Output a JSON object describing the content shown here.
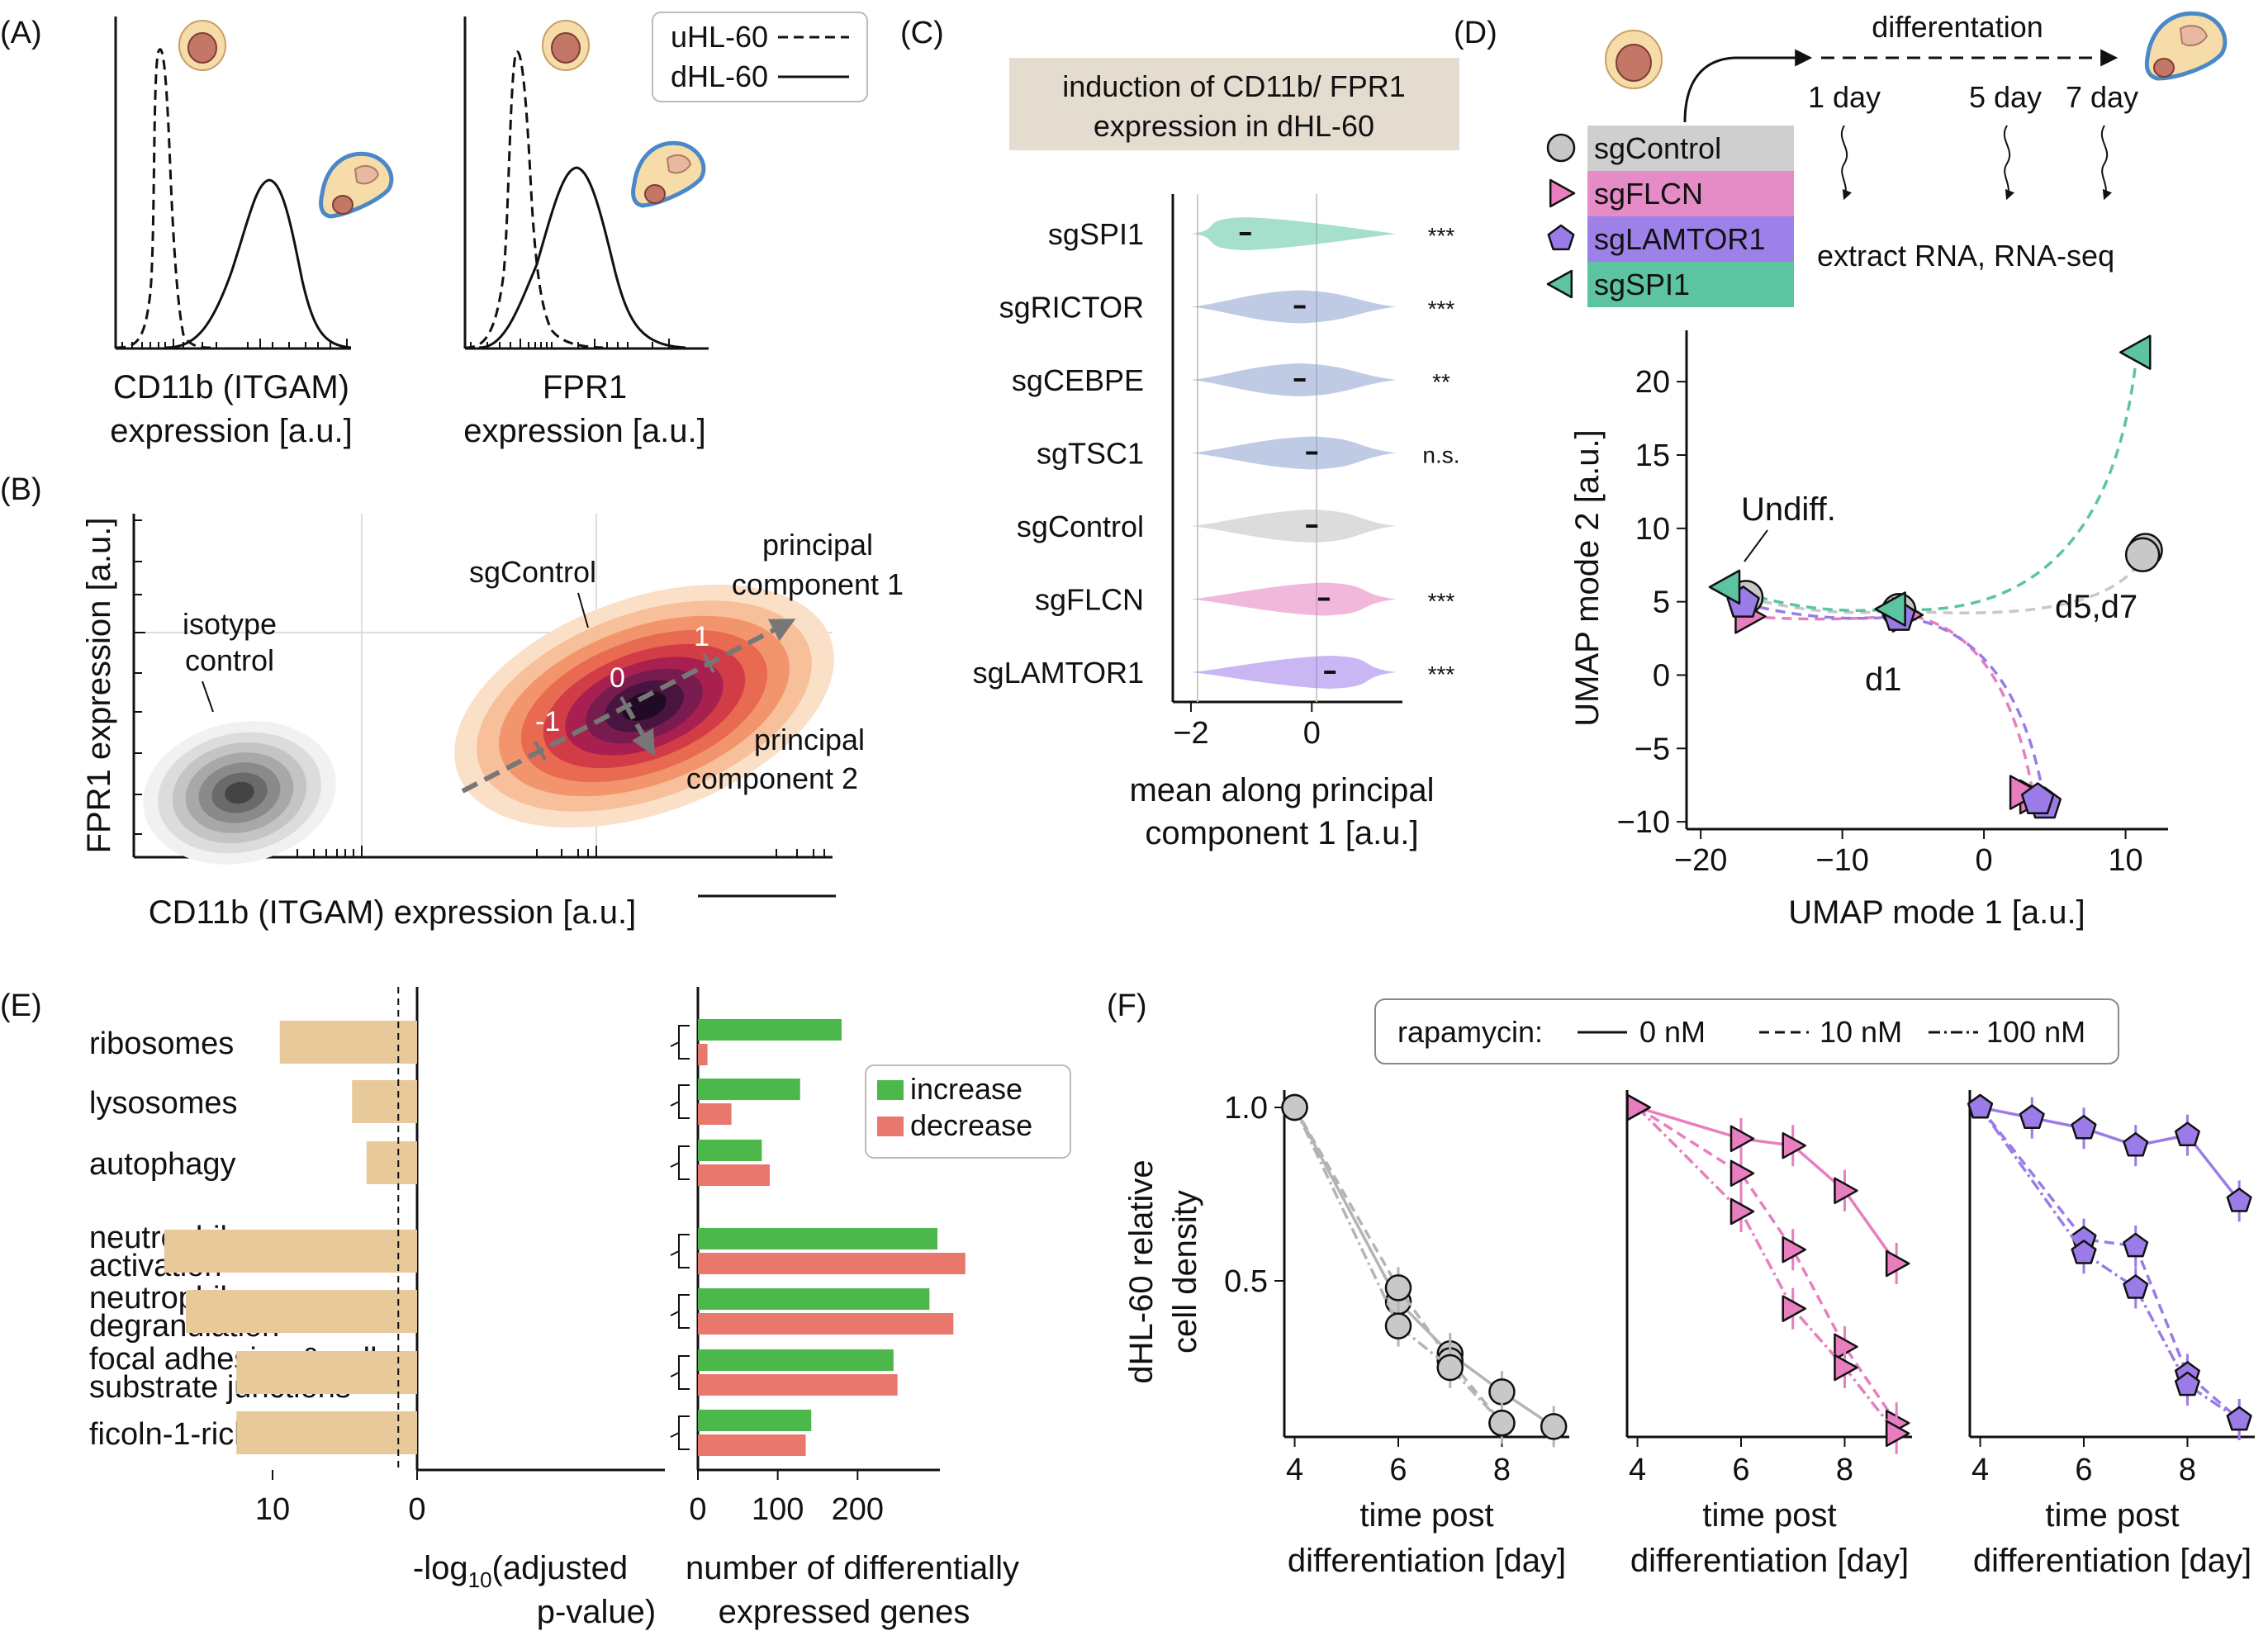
{
  "panels": {
    "A": {
      "label": "(A)",
      "legend": [
        "uHL-60",
        "dHL-60"
      ],
      "xlabel1": [
        "CD11b (ITGAM)",
        "expression [a.u.]"
      ],
      "xlabel2": [
        "FPR1",
        "expression [a.u.]"
      ]
    },
    "B": {
      "label": "(B)",
      "ylabel": "FPR1 expression [a.u.]",
      "xlabel": "CD11b (ITGAM) expression [a.u.]",
      "annotations": {
        "isotype": [
          "isotype",
          "control"
        ],
        "sgcontrol": "sgControl",
        "pc1": [
          "principal",
          "component 1"
        ],
        "pc2": [
          "principal",
          "component 2"
        ],
        "pc_ticks": [
          "-1",
          "0",
          "1"
        ]
      }
    },
    "C": {
      "label": "(C)",
      "title": [
        "induction of CD11b/ FPR1",
        "expression in dHL-60"
      ],
      "xlabel": [
        "mean along principal",
        "component 1 [a.u.]"
      ]
    },
    "D": {
      "label": "(D)",
      "timeline": {
        "title": "differentation",
        "days": [
          "1 day",
          "5 day",
          "7 day"
        ],
        "extract": "extract RNA, RNA-seq"
      },
      "legend": [
        "sgControl",
        "sgFLCN",
        "sgLAMTOR1",
        "sgSPI1"
      ],
      "xlabel": "UMAP mode 1 [a.u.]",
      "ylabel": "UMAP mode 2 [a.u.]",
      "annotations": {
        "undiff": "Undiff.",
        "d1": "d1",
        "d57": "d5,d7"
      }
    },
    "E": {
      "label": "(E)",
      "xlabel_left": [
        "-log",
        "10",
        "(adjusted",
        "p-value)"
      ],
      "xlabel_right": [
        "number of differentially",
        "expressed genes"
      ],
      "legend": [
        "increase",
        "decrease"
      ]
    },
    "F": {
      "label": "(F)",
      "legend_title": "rapamycin:",
      "legend": [
        "0 nM",
        "10 nM",
        "100 nM"
      ],
      "ylabel": [
        "dHL-60 relative",
        "cell density"
      ],
      "xlabel": [
        "time post",
        "differentiation [day]"
      ]
    }
  },
  "colors": {
    "sgControl": "#c8c8c8",
    "sgFLCN": "#e87ec0",
    "sgLAMTOR1": "#9b7be8",
    "sgSPI1": "#5cc4a0",
    "bar_tan": "#e8c99a",
    "increase": "#4cb84c",
    "decrease": "#e8786e",
    "title_box": "#e3dccf"
  },
  "chart_data": [
    {
      "panel": "C",
      "type": "violin",
      "categories": [
        "sgSPI1",
        "sgRICTOR",
        "sgCEBPE",
        "sgTSC1",
        "sgControl",
        "sgFLCN",
        "sgLAMTOR1"
      ],
      "medians": [
        -1.1,
        -0.2,
        -0.2,
        0.0,
        0.0,
        0.2,
        0.3
      ],
      "significance": [
        "***",
        "***",
        "**",
        "n.s.",
        "",
        "***",
        "***"
      ],
      "xticks": [
        "−2",
        "0"
      ],
      "xlim": [
        -2.3,
        1.5
      ]
    },
    {
      "panel": "D",
      "type": "scatter",
      "x_ticks": [
        "−20",
        "−10",
        "0",
        "10"
      ],
      "y_ticks": [
        "−10",
        "−5",
        "0",
        "5",
        "10",
        "15",
        "20"
      ],
      "xlim": [
        -21,
        13
      ],
      "ylim": [
        -10.5,
        23.5
      ],
      "series": [
        {
          "name": "sgControl",
          "points": [
            [
              -16.8,
              5.3
            ],
            [
              -6.0,
              4.4
            ],
            [
              11.4,
              8.5
            ],
            [
              11.2,
              8.2
            ]
          ]
        },
        {
          "name": "sgFLCN",
          "points": [
            [
              -16.6,
              4.0
            ],
            [
              -5.5,
              4.1
            ],
            [
              3.5,
              -8.3
            ],
            [
              2.8,
              -8.0
            ]
          ]
        },
        {
          "name": "sgLAMTOR1",
          "points": [
            [
              -17.0,
              4.9
            ],
            [
              -6.0,
              4.0
            ],
            [
              4.3,
              -8.8
            ],
            [
              3.8,
              -8.5
            ]
          ]
        },
        {
          "name": "sgSPI1",
          "points": [
            [
              -18.2,
              6.0
            ],
            [
              -6.5,
              4.5
            ],
            [
              10.8,
              22.0
            ]
          ]
        }
      ]
    },
    {
      "panel": "E",
      "type": "bar",
      "categories": [
        "ribosomes",
        "lysosomes",
        "autophagy",
        "neutrophil activation",
        "neutrophil degranulation",
        "focal adhesion & cell-substrate junctions",
        "ficoln-1-rich granules"
      ],
      "category_lines": [
        [
          "ribosomes"
        ],
        [
          "lysosomes"
        ],
        [
          "autophagy"
        ],
        [
          "neutrophil",
          "activation"
        ],
        [
          "neutrophil",
          "degranulation"
        ],
        [
          "focal adhesion & cell-",
          "substrate  junctions"
        ],
        [
          "ficoln-1-rich granules"
        ]
      ],
      "neg_log10_padj": [
        9.5,
        4.5,
        3.5,
        17.5,
        16.0,
        12.5,
        12.5
      ],
      "threshold": 1.3,
      "left_xticks": [
        "10",
        "0"
      ],
      "left_xlim": [
        18,
        0
      ],
      "increase": [
        180,
        128,
        80,
        300,
        290,
        245,
        142
      ],
      "decrease": [
        12,
        42,
        90,
        335,
        320,
        250,
        135
      ],
      "right_xticks": [
        "0",
        "100",
        "200"
      ],
      "right_xlim": [
        0,
        340
      ]
    },
    {
      "panel": "F",
      "type": "line",
      "ylim": [
        0.05,
        1.05
      ],
      "yticks": [
        "0.5",
        "1.0"
      ],
      "xticks": [
        "4",
        "6",
        "8"
      ],
      "xlim": [
        3.8,
        9.3
      ],
      "subplots": [
        {
          "group": "sgControl",
          "series": [
            {
              "name": "0 nM",
              "x": [
                4,
                6,
                7,
                8,
                9
              ],
              "y": [
                1.0,
                0.44,
                0.29,
                0.18,
                0.08
              ]
            },
            {
              "name": "10 nM",
              "x": [
                4,
                6,
                7,
                8
              ],
              "y": [
                1.0,
                0.48,
                0.27,
                0.09
              ]
            },
            {
              "name": "100 nM",
              "x": [
                4,
                6,
                7,
                8
              ],
              "y": [
                1.0,
                0.37,
                0.25,
                0.09
              ]
            }
          ]
        },
        {
          "group": "sgFLCN",
          "series": [
            {
              "name": "0 nM",
              "x": [
                4,
                6,
                7,
                8,
                9
              ],
              "y": [
                1.0,
                0.91,
                0.89,
                0.76,
                0.55
              ]
            },
            {
              "name": "10 nM",
              "x": [
                4,
                6,
                7,
                8,
                9
              ],
              "y": [
                1.0,
                0.81,
                0.59,
                0.31,
                0.09
              ]
            },
            {
              "name": "100 nM",
              "x": [
                4,
                6,
                7,
                8,
                9
              ],
              "y": [
                1.0,
                0.7,
                0.42,
                0.25,
                0.06
              ]
            }
          ]
        },
        {
          "group": "sgLAMTOR1",
          "series": [
            {
              "name": "0 nM",
              "x": [
                4,
                5,
                6,
                7,
                8,
                9
              ],
              "y": [
                1.0,
                0.97,
                0.94,
                0.89,
                0.92,
                0.73
              ]
            },
            {
              "name": "10 nM",
              "x": [
                4,
                6,
                7,
                8,
                9
              ],
              "y": [
                1.0,
                0.62,
                0.6,
                0.23,
                0.1
              ]
            },
            {
              "name": "100 nM",
              "x": [
                4,
                6,
                7,
                8,
                9
              ],
              "y": [
                1.0,
                0.58,
                0.48,
                0.2,
                0.1
              ]
            }
          ]
        }
      ]
    }
  ]
}
